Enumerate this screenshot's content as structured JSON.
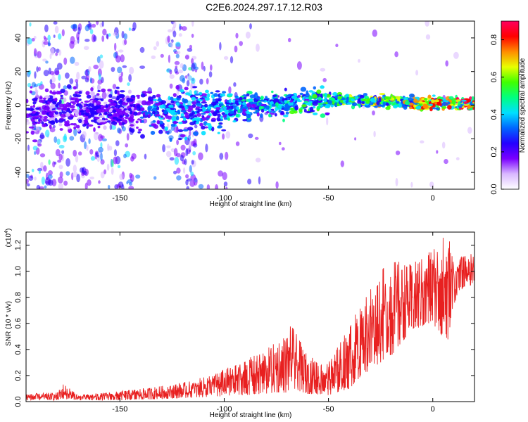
{
  "title": "C2E6.2024.297.17.12.R03",
  "colors": {
    "snr_line": "#e82020",
    "axis": "#000000",
    "colorbar": [
      "#ffffff",
      "#d9b8ff",
      "#7a00ff",
      "#2400ff",
      "#0066ff",
      "#00e0ff",
      "#00ff80",
      "#40ff00",
      "#e8ff00",
      "#ff8c00",
      "#ff0000",
      "#ff0060"
    ]
  },
  "chart_data": [
    {
      "type": "heatmap",
      "name": "spectrogram",
      "xlabel": "Height of straight line (km)",
      "ylabel": "Frequency (Hz)",
      "xlim": [
        -195,
        20
      ],
      "ylim": [
        -50,
        50
      ],
      "xticks": [
        -150,
        -100,
        -50,
        0
      ],
      "yticks": [
        -40,
        -20,
        0,
        20,
        40
      ],
      "colorbar": {
        "label": "Normalized spectral amplitude",
        "range": [
          0.0,
          0.9
        ],
        "ticks": [
          "0.0",
          "0.2",
          "0.4",
          "0.6",
          "0.8"
        ]
      },
      "ridge": [
        {
          "x": -190,
          "f": -5
        },
        {
          "x": -150,
          "f": -2
        },
        {
          "x": -140,
          "f": -4
        },
        {
          "x": -110,
          "f": -3
        },
        {
          "x": -85,
          "f": -1
        },
        {
          "x": -60,
          "f": 2
        },
        {
          "x": -50,
          "f": 3
        },
        {
          "x": -40,
          "f": 3
        },
        {
          "x": -20,
          "f": 2
        },
        {
          "x": 0,
          "f": 1
        },
        {
          "x": 20,
          "f": 1
        }
      ]
    },
    {
      "type": "line",
      "name": "snr",
      "xlabel": "Height of straight line (km)",
      "ylabel": "SNR (10 * v/v)",
      "scale_label": "(x10",
      "scale_exponent": "4",
      "scale_suffix": ")",
      "xlim": [
        -195,
        20
      ],
      "ylim": [
        0,
        1.3
      ],
      "xticks": [
        -150,
        -100,
        -50,
        0
      ],
      "yticks": [
        "0.0",
        "0.2",
        "0.4",
        "0.6",
        "0.8",
        "1.0",
        "1.2"
      ],
      "envelope": [
        {
          "x": -195,
          "min": 0.01,
          "max": 0.06
        },
        {
          "x": -180,
          "min": 0.01,
          "max": 0.07
        },
        {
          "x": -177,
          "min": 0.02,
          "max": 0.14
        },
        {
          "x": -170,
          "min": 0.01,
          "max": 0.05
        },
        {
          "x": -150,
          "min": 0.01,
          "max": 0.08
        },
        {
          "x": -130,
          "min": 0.02,
          "max": 0.12
        },
        {
          "x": -115,
          "min": 0.03,
          "max": 0.16
        },
        {
          "x": -100,
          "min": 0.04,
          "max": 0.25
        },
        {
          "x": -90,
          "min": 0.05,
          "max": 0.32
        },
        {
          "x": -80,
          "min": 0.06,
          "max": 0.4
        },
        {
          "x": -70,
          "min": 0.07,
          "max": 0.52
        },
        {
          "x": -68,
          "min": 0.1,
          "max": 0.6
        },
        {
          "x": -60,
          "min": 0.06,
          "max": 0.35
        },
        {
          "x": -50,
          "min": 0.05,
          "max": 0.3
        },
        {
          "x": -40,
          "min": 0.1,
          "max": 0.58
        },
        {
          "x": -30,
          "min": 0.25,
          "max": 0.9
        },
        {
          "x": -20,
          "min": 0.35,
          "max": 1.1
        },
        {
          "x": -10,
          "min": 0.55,
          "max": 1.05
        },
        {
          "x": 0,
          "min": 0.6,
          "max": 1.2
        },
        {
          "x": 7,
          "min": 0.45,
          "max": 1.3
        },
        {
          "x": 12,
          "min": 0.85,
          "max": 1.1
        },
        {
          "x": 20,
          "min": 0.9,
          "max": 1.15
        }
      ]
    }
  ]
}
